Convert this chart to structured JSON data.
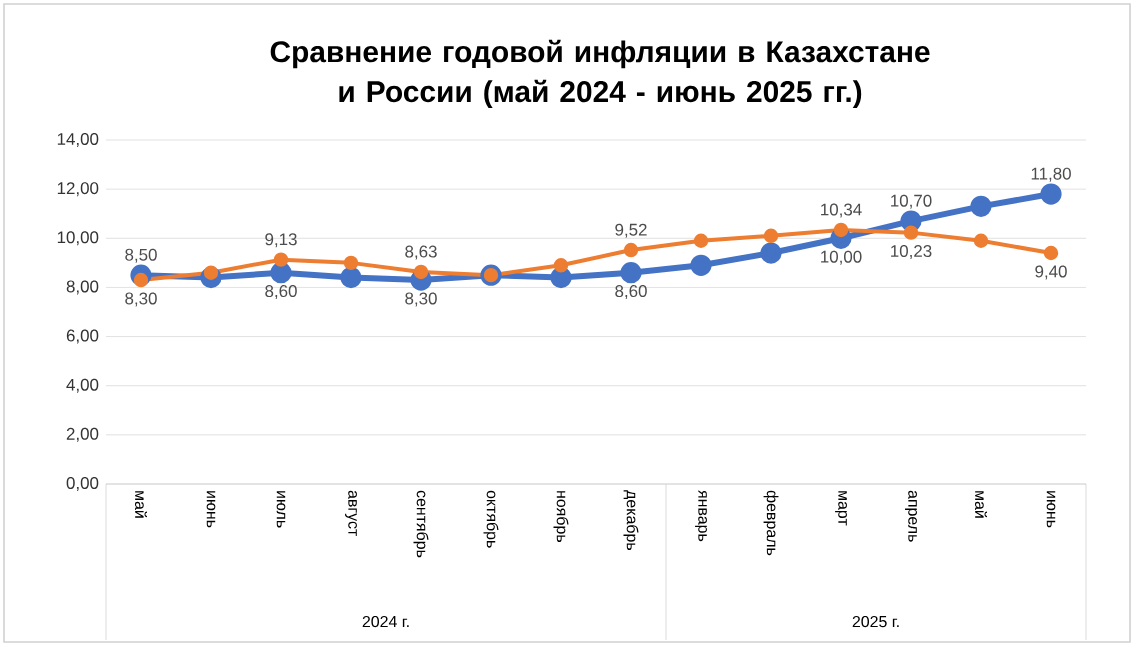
{
  "chart_data": {
    "type": "line",
    "title": "Сравнение годовой  инфляции в Казахстане и России (май 2024 - июнь 2025 гг.)",
    "categories": [
      "май",
      "июнь",
      "июль",
      "август",
      "сентябрь",
      "октябрь",
      "ноябрь",
      "декабрь",
      "январь",
      "февраль",
      "март",
      "апрель",
      "май",
      "июнь"
    ],
    "series": [
      {
        "color": "#4472c4",
        "values": [
          8.5,
          8.4,
          8.6,
          8.4,
          8.3,
          8.5,
          8.4,
          8.6,
          8.9,
          9.4,
          10.0,
          10.7,
          11.3,
          11.8
        ],
        "value_labels": [
          "8,50",
          null,
          "8,60",
          null,
          "8,30",
          null,
          null,
          "8,60",
          null,
          null,
          "10,00",
          "10,70",
          null,
          "11,80"
        ]
      },
      {
        "color": "#ed7d31",
        "values": [
          8.3,
          8.6,
          9.13,
          9.0,
          8.63,
          8.5,
          8.9,
          9.52,
          9.9,
          10.1,
          10.34,
          10.23,
          9.9,
          9.4
        ],
        "value_labels": [
          "8,30",
          null,
          "9,13",
          null,
          "8,63",
          null,
          null,
          "9,52",
          null,
          null,
          "10,34",
          "10,23",
          null,
          "9,40"
        ]
      }
    ],
    "annotations": [
      "2024 г.",
      "2025 г."
    ],
    "ylim": [
      0,
      14
    ],
    "yticks": [
      {
        "value": 0,
        "label": "0,00"
      },
      {
        "value": 2,
        "label": "2,00"
      },
      {
        "value": 4,
        "label": "4,00"
      },
      {
        "value": 6,
        "label": "6,00"
      },
      {
        "value": 8,
        "label": "8,00"
      },
      {
        "value": 10,
        "label": "10,00"
      },
      {
        "value": 12,
        "label": "12,00"
      },
      {
        "value": 14,
        "label": "14,00"
      }
    ],
    "grid": "y",
    "marker": "circle",
    "line_style": "solid"
  }
}
